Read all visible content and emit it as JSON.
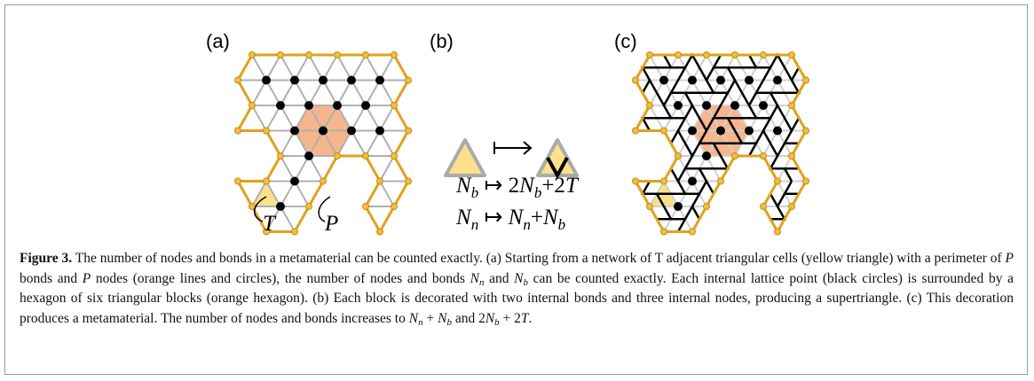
{
  "figure": {
    "panel_labels": [
      "(a)",
      "(b)",
      "(c)"
    ],
    "label_T": "T",
    "label_P": "P",
    "formula_1": [
      "N",
      "b",
      " ↦ ",
      "2",
      "N",
      "b",
      "+2",
      "T"
    ],
    "formula_2": [
      "N",
      "n",
      " ↦ ",
      "N",
      "n",
      "+",
      "N",
      "b"
    ]
  },
  "caption": {
    "runs": [
      "Figure 3.",
      " The number of nodes and bonds in a metamaterial can be counted exactly. (a) Starting from a network of T adjacent triangular cells (yellow triangle) with a perimeter of ",
      "P",
      " bonds and ",
      "P",
      " nodes (orange lines and circles), the number of nodes and bonds ",
      "N",
      "n",
      " and ",
      "N",
      "b",
      " can be counted exactly. Each internal lattice point (black circles) is surrounded by a hexagon of six triangular blocks (orange hexagon). (b) Each block is decorated with two internal bonds and three internal nodes, producing a supertriangle. (c) This decoration produces a metamaterial. The number of nodes and bonds increases to ",
      "N",
      "n",
      " + ",
      "N",
      "b",
      " and 2",
      "N",
      "b",
      " + 2",
      "T",
      "."
    ]
  }
}
